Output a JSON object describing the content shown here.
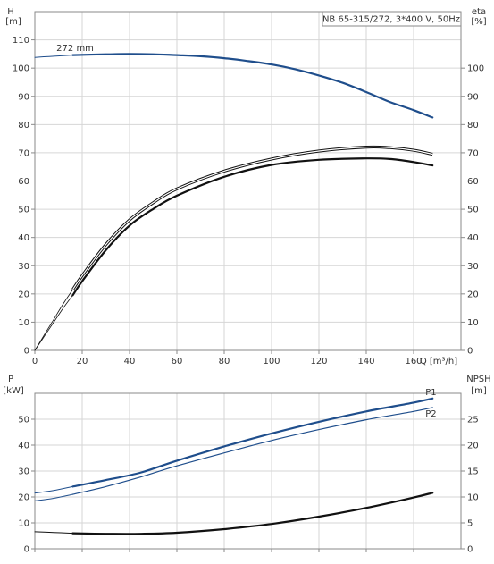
{
  "colors": {
    "blue": "#1f4e8c",
    "black": "#111111",
    "grid": "#d6d6d6",
    "frame": "#8a8a8a",
    "text": "#333333"
  },
  "chart_data": [
    {
      "type": "line",
      "title": "NB 65-315/272, 3*400 V, 50Hz",
      "ylabel": "H",
      "yunit": "[m]",
      "y2label": "eta",
      "y2unit": "[%]",
      "xlabel": "Q [m³/h]",
      "xlim": [
        0,
        180
      ],
      "ylim": [
        0,
        120
      ],
      "y2lim": [
        0,
        120
      ],
      "xticks": [
        0,
        20,
        40,
        60,
        80,
        100,
        120,
        140,
        160
      ],
      "yticks": [
        0,
        10,
        20,
        30,
        40,
        50,
        60,
        70,
        80,
        90,
        100,
        110
      ],
      "y2ticks": [
        0,
        10,
        20,
        30,
        40,
        50,
        60,
        70,
        80,
        90,
        100
      ],
      "grid": true,
      "annotations": [
        {
          "text": "272 mm",
          "x": 17,
          "y": 106
        }
      ],
      "series": [
        {
          "key": "head",
          "axis": "left",
          "color": "blue",
          "width": 2.2,
          "x": [
            16,
            30,
            40,
            50,
            60,
            70,
            80,
            90,
            100,
            110,
            120,
            130,
            140,
            150,
            160,
            168
          ],
          "y": [
            104.6,
            104.9,
            105,
            104.9,
            104.6,
            104.2,
            103.5,
            102.5,
            101.3,
            99.6,
            97.4,
            94.8,
            91.5,
            88,
            85.1,
            82.5
          ]
        },
        {
          "key": "head-ext",
          "axis": "left",
          "color": "blue",
          "width": 1,
          "x": [
            0,
            6,
            12,
            16
          ],
          "y": [
            103.8,
            104.1,
            104.4,
            104.6
          ]
        },
        {
          "key": "eta-total",
          "axis": "right",
          "color": "black",
          "width": 2.2,
          "x": [
            16,
            20,
            30,
            40,
            50,
            60,
            80,
            100,
            120,
            140,
            150,
            160,
            168
          ],
          "y": [
            19.5,
            24.5,
            35.5,
            44.2,
            50.1,
            54.8,
            61.5,
            65.7,
            67.5,
            68,
            67.8,
            66.7,
            65.5
          ]
        },
        {
          "key": "eta-total-ext",
          "axis": "right",
          "color": "black",
          "width": 0.8,
          "x": [
            0,
            4,
            8,
            12,
            16
          ],
          "y": [
            0,
            5,
            10,
            15,
            19.5
          ]
        },
        {
          "key": "eta-hyd",
          "axis": "right",
          "color": "black",
          "width": 2.2,
          "double": true,
          "x": [
            16,
            20,
            30,
            40,
            50,
            60,
            80,
            100,
            120,
            140,
            150,
            160,
            168
          ],
          "y": [
            21.5,
            26.5,
            37.5,
            46.2,
            52.3,
            57.2,
            63.5,
            67.8,
            70.6,
            72,
            71.8,
            70.9,
            69.5
          ]
        },
        {
          "key": "eta-hyd-ext",
          "axis": "right",
          "color": "black",
          "width": 0.8,
          "x": [
            0,
            4,
            8,
            12,
            16
          ],
          "y": [
            0,
            5.5,
            11,
            16.5,
            21.5
          ]
        }
      ]
    },
    {
      "type": "line",
      "ylabel": "P",
      "yunit": "[kW]",
      "y2label": "NPSH",
      "y2unit": "[m]",
      "xlim": [
        0,
        180
      ],
      "ylim": [
        0,
        60
      ],
      "y2lim": [
        0,
        30
      ],
      "yticks": [
        0,
        10,
        20,
        30,
        40,
        50
      ],
      "y2ticks": [
        0,
        5,
        10,
        15,
        20,
        25
      ],
      "grid": true,
      "series": [
        {
          "name": "P1",
          "key": "p1",
          "axis": "left",
          "color": "blue",
          "width": 2.2,
          "x": [
            16,
            30,
            45,
            60,
            80,
            100,
            120,
            140,
            160,
            168
          ],
          "y": [
            24,
            26.5,
            29.5,
            34,
            39.5,
            44.5,
            49,
            53,
            56.4,
            58
          ]
        },
        {
          "key": "p1-ext",
          "axis": "left",
          "color": "blue",
          "width": 1,
          "x": [
            0,
            8,
            16
          ],
          "y": [
            21.5,
            22.5,
            24
          ]
        },
        {
          "name": "P2",
          "key": "p2",
          "axis": "left",
          "color": "blue",
          "width": 1.2,
          "x": [
            16,
            30,
            45,
            60,
            80,
            100,
            120,
            140,
            160,
            168
          ],
          "y": [
            21,
            24,
            27.8,
            32,
            37,
            41.8,
            46,
            49.8,
            53,
            54.5
          ]
        },
        {
          "key": "p2-ext",
          "axis": "left",
          "color": "blue",
          "width": 1,
          "x": [
            0,
            8,
            16
          ],
          "y": [
            18.5,
            19.5,
            21
          ]
        },
        {
          "name": "NPSH",
          "key": "npsh",
          "axis": "right",
          "color": "black",
          "width": 2.2,
          "x": [
            16,
            30,
            45,
            60,
            80,
            100,
            120,
            140,
            160,
            168
          ],
          "y": [
            3,
            2.9,
            2.9,
            3.1,
            3.8,
            4.8,
            6.2,
            7.9,
            9.9,
            10.8
          ]
        },
        {
          "key": "npsh-ext",
          "axis": "right",
          "color": "black",
          "width": 1,
          "x": [
            0,
            8,
            16
          ],
          "y": [
            3.3,
            3.15,
            3
          ]
        }
      ]
    }
  ]
}
